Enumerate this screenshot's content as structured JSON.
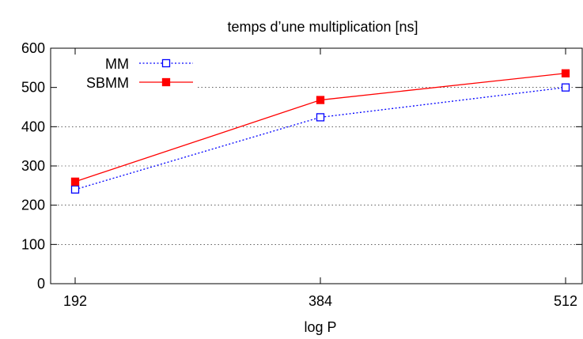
{
  "chart_data": {
    "type": "line",
    "title": "temps d’une multiplication [ns]",
    "xlabel": "log P",
    "ylabel": "",
    "categories": [
      "192",
      "384",
      "512"
    ],
    "ylim": [
      0,
      600
    ],
    "yticks": [
      0,
      100,
      200,
      300,
      400,
      500,
      600
    ],
    "grid": "horizontal dotted",
    "legend_position": "top-left",
    "series": [
      {
        "name": "MM",
        "values": [
          240,
          424,
          500
        ],
        "color": "#0000ff",
        "line_style": "dotted",
        "marker": "open-square"
      },
      {
        "name": "SBMM",
        "values": [
          260,
          468,
          536
        ],
        "color": "#ff0000",
        "line_style": "solid",
        "marker": "filled-square"
      }
    ]
  }
}
